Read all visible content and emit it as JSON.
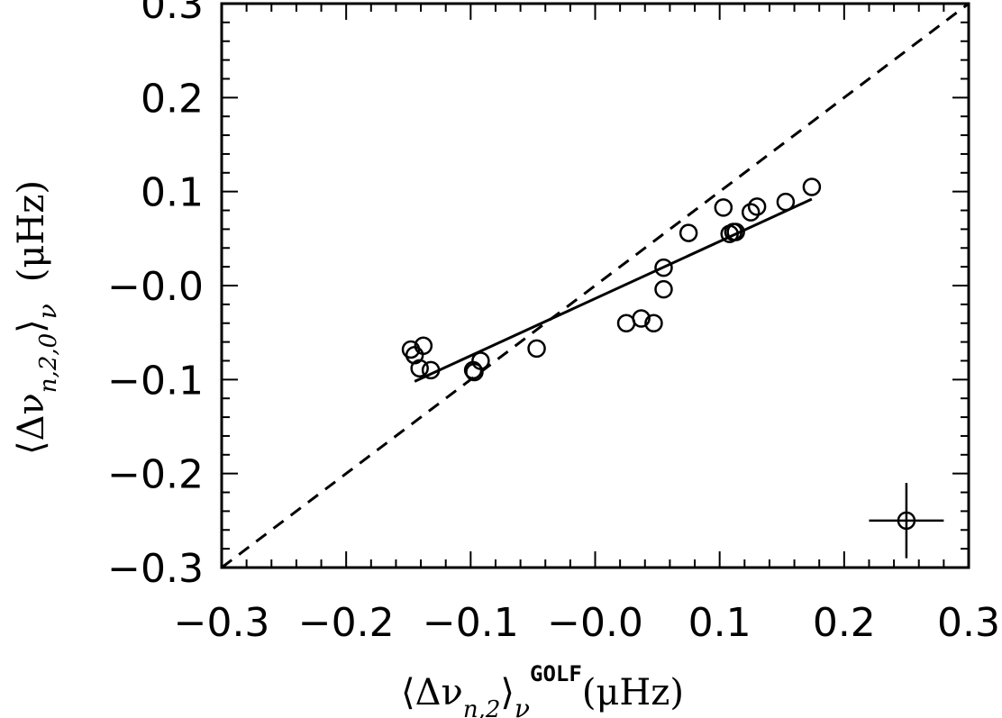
{
  "chart_data": {
    "type": "scatter",
    "xlabel": {
      "open": "⟨Δν",
      "sub": "n,2",
      "close": "⟩",
      "sub2": "ν",
      "sup": "GOLF",
      "unit": "(μHz)"
    },
    "ylabel": {
      "open": "⟨Δν",
      "sub": "n,2,0",
      "close": "⟩",
      "sub2": "ν",
      "unit": "(μHz)"
    },
    "xlim": [
      -0.3,
      0.3
    ],
    "ylim": [
      -0.3,
      0.3
    ],
    "xticks": [
      -0.3,
      -0.2,
      -0.1,
      0.0,
      0.1,
      0.2,
      0.3
    ],
    "xtick_labels": [
      "−0.3",
      "−0.2",
      "−0.1",
      "−0.0",
      "0.1",
      "0.2",
      "0.3"
    ],
    "yticks": [
      -0.3,
      -0.2,
      -0.1,
      0.0,
      0.1,
      0.2,
      0.3
    ],
    "ytick_labels": [
      "−0.3",
      "−0.2",
      "−0.1",
      "−0.0",
      "0.1",
      "0.2",
      "0.3"
    ],
    "grid": false,
    "points": [
      {
        "x": -0.148,
        "y": -0.068
      },
      {
        "x": -0.145,
        "y": -0.074
      },
      {
        "x": -0.138,
        "y": -0.064
      },
      {
        "x": -0.141,
        "y": -0.088
      },
      {
        "x": -0.132,
        "y": -0.09
      },
      {
        "x": -0.098,
        "y": -0.09
      },
      {
        "x": -0.097,
        "y": -0.092
      },
      {
        "x": -0.092,
        "y": -0.08
      },
      {
        "x": -0.047,
        "y": -0.067
      },
      {
        "x": 0.025,
        "y": -0.04
      },
      {
        "x": 0.037,
        "y": -0.035
      },
      {
        "x": 0.047,
        "y": -0.04
      },
      {
        "x": 0.055,
        "y": -0.004
      },
      {
        "x": 0.055,
        "y": 0.019
      },
      {
        "x": 0.075,
        "y": 0.056
      },
      {
        "x": 0.103,
        "y": 0.083
      },
      {
        "x": 0.108,
        "y": 0.055
      },
      {
        "x": 0.111,
        "y": 0.057
      },
      {
        "x": 0.113,
        "y": 0.057
      },
      {
        "x": 0.125,
        "y": 0.078
      },
      {
        "x": 0.13,
        "y": 0.084
      },
      {
        "x": 0.153,
        "y": 0.089
      },
      {
        "x": 0.174,
        "y": 0.105
      }
    ],
    "fit_line": {
      "x": [
        -0.145,
        0.174
      ],
      "y": [
        -0.102,
        0.092
      ]
    },
    "identity_line": {
      "x": [
        -0.3,
        0.3
      ],
      "y": [
        -0.3,
        0.3
      ]
    },
    "error_bar": {
      "x": 0.25,
      "y": -0.25,
      "xerr": 0.03,
      "yerr": 0.04
    }
  }
}
